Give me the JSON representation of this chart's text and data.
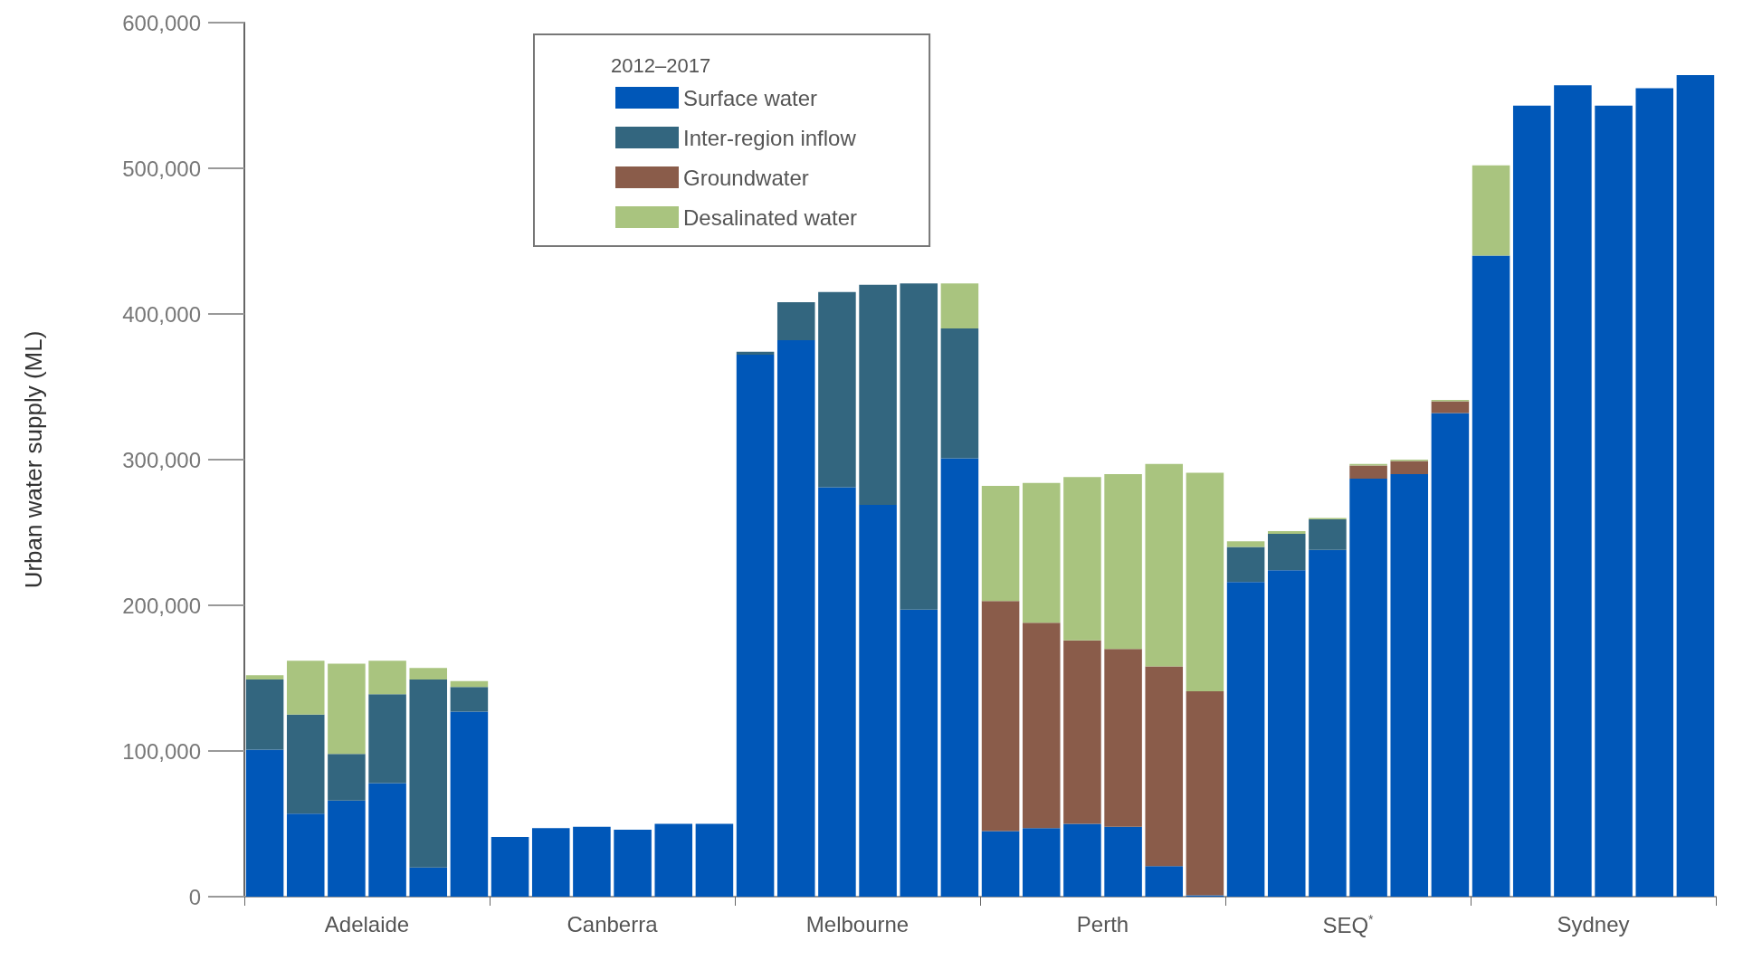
{
  "chart_data": {
    "type": "bar",
    "stacked": true,
    "ylabel": "Urban water supply (ML)",
    "legend_title": "2012–2017",
    "legend": "top",
    "categories": [
      null,
      null,
      "Adelaide",
      null,
      null,
      null,
      null,
      null,
      "Canberra",
      null,
      null,
      null,
      null,
      null,
      "Melbourne",
      null,
      null,
      null,
      null,
      null,
      "Perth",
      null,
      null,
      null,
      null,
      null,
      "SEQ$^{*}$",
      null,
      null,
      null,
      null,
      null,
      "Sydney",
      null,
      null,
      null
    ],
    "series": [
      {
        "name": "Surface water",
        "color": "#0057b8",
        "values": [
          101000,
          57000,
          66000,
          78000,
          20000,
          127000,
          41000,
          47000,
          48000,
          46000,
          50000,
          50000,
          372000,
          382000,
          281000,
          269000,
          197000,
          301000,
          45000,
          47000,
          50000,
          48000,
          21000,
          1000,
          216000,
          224000,
          238000,
          287000,
          290000,
          332000,
          440000,
          543000,
          557000,
          543000,
          555000,
          564000
        ]
      },
      {
        "name": "Inter-region inflow",
        "color": "#33667f",
        "values": [
          48000,
          68000,
          32000,
          61000,
          129000,
          17000,
          null,
          null,
          null,
          null,
          null,
          null,
          2000,
          26000,
          134000,
          151000,
          224000,
          89000,
          null,
          null,
          null,
          null,
          null,
          null,
          24000,
          25000,
          21000,
          null,
          null,
          null,
          null,
          null,
          null,
          null,
          null,
          null
        ]
      },
      {
        "name": "Groundwater",
        "color": "#8a5c4a",
        "values": [
          null,
          null,
          null,
          null,
          null,
          null,
          null,
          null,
          null,
          null,
          null,
          null,
          null,
          null,
          null,
          null,
          null,
          null,
          158000,
          141000,
          126000,
          122000,
          137000,
          140000,
          null,
          null,
          null,
          9000,
          9000,
          8000,
          null,
          null,
          null,
          null,
          null,
          null
        ]
      },
      {
        "name": "Desalinated water",
        "color": "#a9c47f",
        "values": [
          3000,
          37000,
          62000,
          23000,
          8000,
          4000,
          null,
          null,
          null,
          null,
          null,
          null,
          null,
          null,
          null,
          null,
          null,
          31000,
          79000,
          96000,
          112000,
          120000,
          139000,
          150000,
          4000,
          2000,
          1000,
          1000,
          1000,
          1000,
          62000,
          null,
          null,
          null,
          null,
          null
        ]
      }
    ],
    "ylim": [
      0,
      600000
    ],
    "yticks": [
      0,
      {
        "value": 100000,
        "label": "100,000"
      },
      {
        "value": 200000,
        "label": "200,000"
      },
      {
        "value": 300000,
        "label": "300,000"
      },
      {
        "value": 400000,
        "label": "400,000"
      },
      {
        "value": 500000,
        "label": "500,000"
      },
      {
        "value": 600000,
        "label": "600,000"
      }
    ],
    "grid": false
  }
}
